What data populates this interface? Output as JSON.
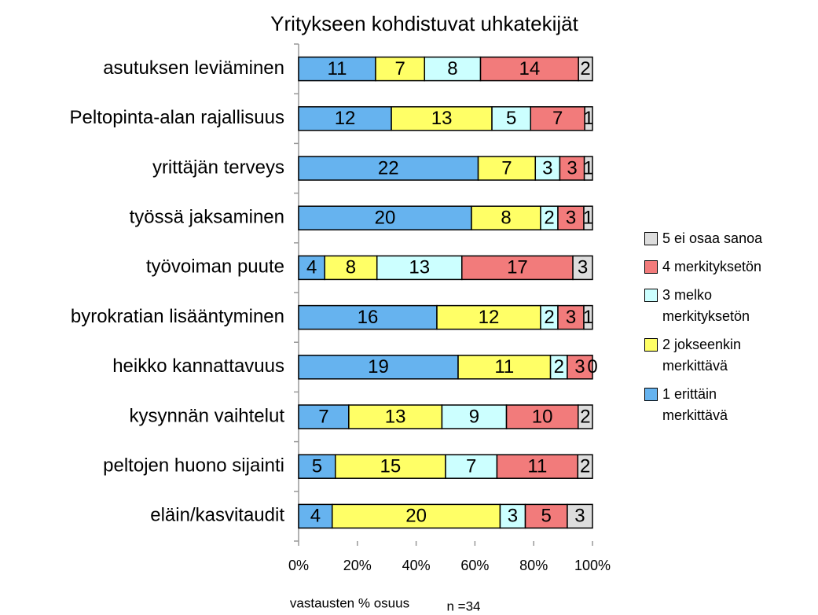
{
  "chart_data": {
    "type": "bar",
    "orientation": "horizontal",
    "stack": "percent",
    "title": "Yritykseen kohdistuvat uhkatekijät",
    "x_label": "vastausten % osuus",
    "annotation": "n =34",
    "categories": [
      "asutuksen leviäminen",
      "Peltopinta-alan rajallisuus",
      "yrittäjän terveys",
      "työssä jaksaminen",
      "työvoiman puute",
      "byrokratian lisääntyminen",
      "heikko kannattavuus",
      "kysynnän vaihtelut",
      "peltojen huono sijainti",
      "eläin/kasvitaudit"
    ],
    "series": [
      {
        "name": "1 erittäin merkittävä",
        "color": "#66b3ef",
        "values": [
          11,
          12,
          22,
          20,
          4,
          16,
          19,
          7,
          5,
          4
        ]
      },
      {
        "name": "2 jokseenkin merkittävä",
        "color": "#ffff66",
        "values": [
          7,
          13,
          7,
          8,
          8,
          12,
          11,
          13,
          15,
          20
        ]
      },
      {
        "name": "3 melko merkityksetön",
        "color": "#ccffff",
        "values": [
          8,
          5,
          3,
          2,
          13,
          2,
          2,
          9,
          7,
          3
        ]
      },
      {
        "name": "4 merkityksetön",
        "color": "#f27b7b",
        "values": [
          14,
          7,
          3,
          3,
          17,
          3,
          3,
          10,
          11,
          5
        ]
      },
      {
        "name": "5 ei osaa sanoa",
        "color": "#dddddd",
        "values": [
          2,
          1,
          1,
          1,
          3,
          1,
          0,
          2,
          2,
          3
        ]
      }
    ],
    "xlim": [
      0,
      100
    ],
    "xticks": [
      {
        "value": 0,
        "label": "0%"
      },
      {
        "value": 20,
        "label": "20%"
      },
      {
        "value": 40,
        "label": "40%"
      },
      {
        "value": 60,
        "label": "60%"
      },
      {
        "value": 80,
        "label": "80%"
      },
      {
        "value": 100,
        "label": "100%"
      }
    ],
    "legend": "right"
  }
}
